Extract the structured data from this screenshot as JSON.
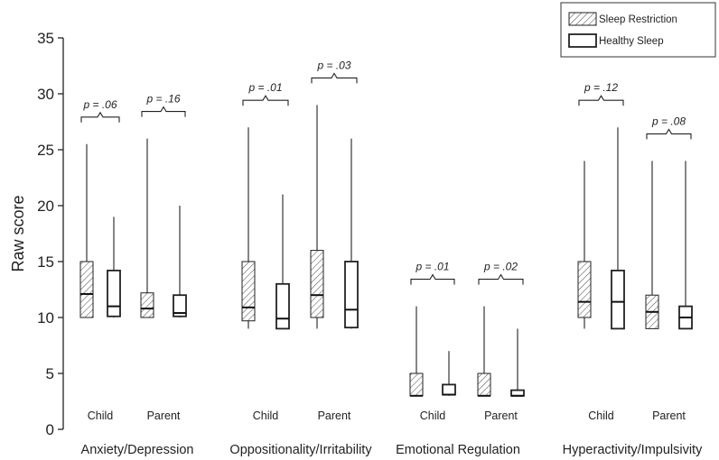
{
  "chart_data": {
    "type": "boxplot",
    "title": "",
    "ylabel": "Raw score",
    "ylim": [
      0,
      35
    ],
    "yticks": [
      0,
      5,
      10,
      15,
      20,
      25,
      30,
      35
    ],
    "legend": {
      "placement": "top-right",
      "entries": [
        {
          "name": "Sleep Restriction",
          "pattern": "hatched"
        },
        {
          "name": "Healthy Sleep",
          "pattern": "open"
        }
      ]
    },
    "groups": [
      {
        "name": "Anxiety/Depression",
        "subgroups": [
          {
            "label": "Child",
            "p_text": "p = .06",
            "boxes": [
              {
                "series": "Sleep Restriction",
                "min": 10,
                "q1": 10,
                "median": 12.1,
                "q3": 15,
                "max": 25.5
              },
              {
                "series": "Healthy Sleep",
                "min": 10,
                "q1": 10.1,
                "median": 11,
                "q3": 14.2,
                "max": 19
              }
            ]
          },
          {
            "label": "Parent",
            "p_text": "p = .16",
            "boxes": [
              {
                "series": "Sleep Restriction",
                "min": 10,
                "q1": 10,
                "median": 10.8,
                "q3": 12.2,
                "max": 26
              },
              {
                "series": "Healthy Sleep",
                "min": 10,
                "q1": 10.1,
                "median": 10.4,
                "q3": 12,
                "max": 20
              }
            ]
          }
        ]
      },
      {
        "name": "Oppositionality/Irritability",
        "subgroups": [
          {
            "label": "Child",
            "p_text": "p = .01",
            "boxes": [
              {
                "series": "Sleep Restriction",
                "min": 9,
                "q1": 9.7,
                "median": 10.9,
                "q3": 15,
                "max": 27
              },
              {
                "series": "Healthy Sleep",
                "min": 9,
                "q1": 9,
                "median": 9.9,
                "q3": 13,
                "max": 21
              }
            ]
          },
          {
            "label": "Parent",
            "p_text": "p = .03",
            "boxes": [
              {
                "series": "Sleep Restriction",
                "min": 9,
                "q1": 10,
                "median": 12,
                "q3": 16,
                "max": 29
              },
              {
                "series": "Healthy Sleep",
                "min": 9,
                "q1": 9.1,
                "median": 10.7,
                "q3": 15,
                "max": 26
              }
            ]
          }
        ]
      },
      {
        "name": "Emotional Regulation",
        "subgroups": [
          {
            "label": "Child",
            "p_text": "p = .01",
            "boxes": [
              {
                "series": "Sleep Restriction",
                "min": 3,
                "q1": 3,
                "median": 3,
                "q3": 5,
                "max": 11
              },
              {
                "series": "Healthy Sleep",
                "min": 3,
                "q1": 3.1,
                "median": 3.1,
                "q3": 4,
                "max": 7
              }
            ]
          },
          {
            "label": "Parent",
            "p_text": "p = .02",
            "boxes": [
              {
                "series": "Sleep Restriction",
                "min": 3,
                "q1": 3,
                "median": 3,
                "q3": 5,
                "max": 11
              },
              {
                "series": "Healthy Sleep",
                "min": 3,
                "q1": 3,
                "median": 3,
                "q3": 3.5,
                "max": 9
              }
            ]
          }
        ]
      },
      {
        "name": "Hyperactivity/Impulsivity",
        "subgroups": [
          {
            "label": "Child",
            "p_text": "p = .12",
            "boxes": [
              {
                "series": "Sleep Restriction",
                "min": 9,
                "q1": 10,
                "median": 11.4,
                "q3": 15,
                "max": 24
              },
              {
                "series": "Healthy Sleep",
                "min": 9,
                "q1": 9,
                "median": 11.4,
                "q3": 14.2,
                "max": 27
              }
            ]
          },
          {
            "label": "Parent",
            "p_text": "p = .08",
            "boxes": [
              {
                "series": "Sleep Restriction",
                "min": 9,
                "q1": 9,
                "median": 10.5,
                "q3": 12,
                "max": 24
              },
              {
                "series": "Healthy Sleep",
                "min": 9,
                "q1": 9,
                "median": 10,
                "q3": 11,
                "max": 24
              }
            ]
          }
        ]
      }
    ]
  }
}
